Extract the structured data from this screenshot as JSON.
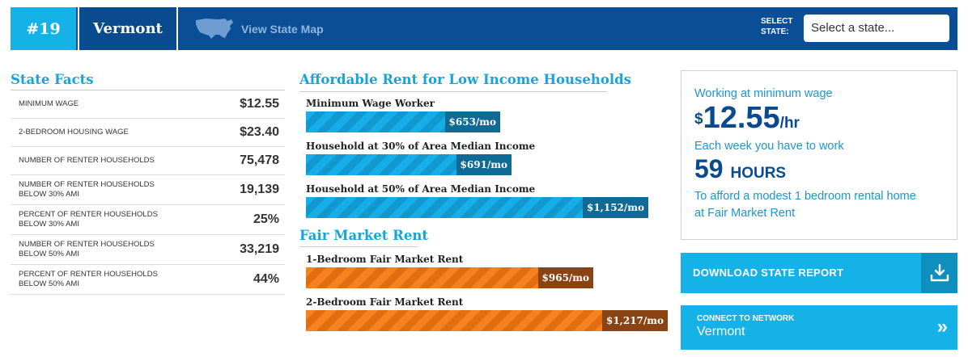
{
  "header": {
    "rank": "#19",
    "state": "Vermont",
    "map_link": "View State Map",
    "select_label_1": "SELECT",
    "select_label_2": "STATE:",
    "select_placeholder": "Select a state..."
  },
  "state_facts": {
    "title": "State Facts",
    "rows": [
      {
        "label": "MINIMUM WAGE",
        "value": "$12.55"
      },
      {
        "label": "2-BEDROOM HOUSING WAGE",
        "value": "$23.40"
      },
      {
        "label": "NUMBER OF RENTER HOUSEHOLDS",
        "value": "75,478"
      },
      {
        "label": "NUMBER OF RENTER HOUSEHOLDS BELOW 30% AMI",
        "value": "19,139"
      },
      {
        "label": "PERCENT OF RENTER HOUSEHOLDS BELOW 30% AMI",
        "value": "25%"
      },
      {
        "label": "NUMBER OF RENTER HOUSEHOLDS BELOW 50% AMI",
        "value": "33,219"
      },
      {
        "label": "PERCENT OF RENTER HOUSEHOLDS BELOW 50% AMI",
        "value": "44%"
      }
    ]
  },
  "affordable_rent": {
    "title": "Affordable Rent for Low Income Households",
    "bars": [
      {
        "label": "Minimum Wage Worker",
        "value": 653,
        "display": "$653/mo"
      },
      {
        "label": "Household at 30% of Area Median Income",
        "value": 691,
        "display": "$691/mo"
      },
      {
        "label": "Household at 50% of Area Median Income",
        "value": 1152,
        "display": "$1,152/mo"
      }
    ]
  },
  "fair_market_rent": {
    "title": "Fair Market Rent",
    "bars": [
      {
        "label": "1-Bedroom Fair Market Rent",
        "value": 965,
        "display": "$965/mo"
      },
      {
        "label": "2-Bedroom Fair Market Rent",
        "value": 1217,
        "display": "$1,217/mo"
      }
    ]
  },
  "summary": {
    "line1": "Working at minimum wage",
    "wage_currency": "$",
    "wage_value": "12.55",
    "wage_unit": "/hr",
    "line2": "Each week you have to work",
    "hours_value": "59",
    "hours_unit": "HOURS",
    "line3": "To afford a modest 1 bedroom rental home",
    "line4": "at Fair Market Rent"
  },
  "buttons": {
    "download": "DOWNLOAD STATE REPORT",
    "network_small": "CONNECT TO NETWORK",
    "network_big": "Vermont",
    "network_chevron": "»"
  },
  "colors": {
    "header_blue": "#0a4f96",
    "accent_cyan": "#14b2e6",
    "bar_blue": "#16aee8",
    "bar_orange": "#f5821f",
    "tag_blue": "#0f6a96",
    "tag_orange": "#8a4414"
  }
}
